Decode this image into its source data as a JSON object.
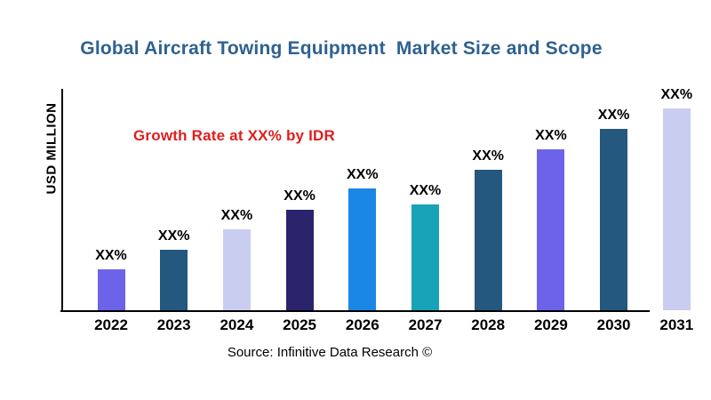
{
  "title": {
    "text": "Global Aircraft Towing Equipment  Market Size and Scope",
    "color": "#2E6190"
  },
  "annotation": {
    "text": "Growth Rate at XX% by IDR",
    "color": "#E01E1E"
  },
  "axis": {
    "y_label": "USD MILLION"
  },
  "source": {
    "text": "Source: Infinitive Data Research ©"
  },
  "chart_data": {
    "type": "bar",
    "title": "Global Aircraft Towing Equipment  Market Size and Scope",
    "xlabel": "",
    "ylabel": "USD MILLION",
    "categories": [
      "2022",
      "2023",
      "2024",
      "2025",
      "2026",
      "2027",
      "2028",
      "2029",
      "2030",
      "2031"
    ],
    "series": [
      {
        "name": "Market Size",
        "values": [
          46,
          68,
          91,
          113,
          137,
          119,
          158,
          181,
          204,
          227
        ],
        "values_note": "relative bar heights estimated from pixels; actual values masked as XX% in chart"
      }
    ],
    "bar_labels": [
      "XX%",
      "XX%",
      "XX%",
      "XX%",
      "XX%",
      "XX%",
      "XX%",
      "XX%",
      "XX%",
      "XX%"
    ],
    "bar_colors": [
      "#6D63EA",
      "#24587E",
      "#C9CDF0",
      "#29246B",
      "#1A87E6",
      "#17A2B8",
      "#24587E",
      "#6D63EA",
      "#24587E",
      "#C9CDF0"
    ],
    "annotation": "Growth Rate at XX% by IDR",
    "legend": false,
    "grid": false,
    "y_tick_labels": [],
    "source": "Source: Infinitive Data Research ©"
  }
}
